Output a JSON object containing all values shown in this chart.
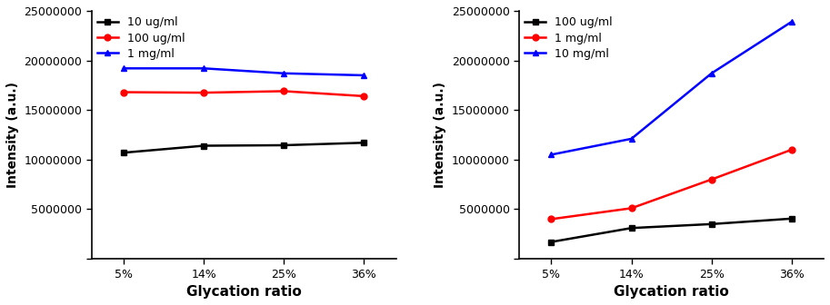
{
  "x_labels": [
    "5%",
    "14%",
    "25%",
    "36%"
  ],
  "x_positions": [
    0,
    1,
    2,
    3
  ],
  "left": {
    "series": [
      {
        "label": "10 ug/ml",
        "color": "#000000",
        "marker": "s",
        "markersize": 5,
        "values": [
          10700000,
          11400000,
          11450000,
          11700000
        ]
      },
      {
        "label": "100 ug/ml",
        "color": "#ff0000",
        "marker": "o",
        "markersize": 5,
        "values": [
          16800000,
          16750000,
          16900000,
          16400000
        ]
      },
      {
        "label": "1 mg/ml",
        "color": "#0000ff",
        "marker": "^",
        "markersize": 5,
        "values": [
          19200000,
          19200000,
          18700000,
          18500000
        ]
      }
    ],
    "ylabel": "Intensity (a.u.)",
    "xlabel": "Glycation ratio",
    "ylim": [
      0,
      25000000
    ],
    "yticks": [
      0,
      5000000,
      10000000,
      15000000,
      20000000,
      25000000
    ]
  },
  "right": {
    "series": [
      {
        "label": "100 ug/ml",
        "color": "#000000",
        "marker": "s",
        "markersize": 5,
        "values": [
          1700000,
          3100000,
          3500000,
          4050000
        ]
      },
      {
        "label": "1 mg/ml",
        "color": "#ff0000",
        "marker": "o",
        "markersize": 5,
        "values": [
          4000000,
          5100000,
          8000000,
          11000000
        ]
      },
      {
        "label": "10 mg/ml",
        "color": "#0000ff",
        "marker": "^",
        "markersize": 5,
        "values": [
          10500000,
          12100000,
          18700000,
          23900000
        ]
      }
    ],
    "ylabel": "Intensity (a.u.)",
    "xlabel": "Glycation ratio",
    "ylim": [
      0,
      25000000
    ],
    "yticks": [
      0,
      5000000,
      10000000,
      15000000,
      20000000,
      25000000
    ]
  },
  "figsize": [
    9.13,
    3.36
  ],
  "dpi": 100,
  "linewidth": 1.8,
  "tick_labelsize": 9,
  "xlabel_fontsize": 11,
  "ylabel_fontsize": 10,
  "legend_fontsize": 9,
  "background_color": "#ffffff"
}
